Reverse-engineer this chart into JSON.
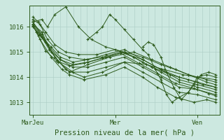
{
  "xlabel": "Pression niveau de la mer( hPa )",
  "xtick_labels": [
    "MarJeu",
    "Mer",
    "Ven"
  ],
  "xtick_positions": [
    0.0,
    0.45,
    0.9
  ],
  "ytick_labels": [
    "1013",
    "1014",
    "1015",
    "1016"
  ],
  "ytick_values": [
    1013,
    1014,
    1015,
    1016
  ],
  "ylim": [
    1012.5,
    1016.85
  ],
  "xlim": [
    -0.02,
    1.02
  ],
  "bg_color": "#cce8e0",
  "line_color": "#2d5a1b",
  "marker": "+",
  "grid_color": "#aaccc4",
  "n_vgrid": 28,
  "series": [
    {
      "x": [
        0.0,
        0.05,
        0.08,
        0.12,
        0.18,
        0.25,
        0.32,
        0.4,
        0.5,
        0.6,
        0.7,
        0.78,
        0.85,
        0.9,
        0.95,
        1.0
      ],
      "y": [
        1016.2,
        1016.3,
        1016.0,
        1016.5,
        1016.8,
        1016.0,
        1015.5,
        1015.2,
        1015.0,
        1014.8,
        1014.5,
        1014.3,
        1014.1,
        1014.0,
        1013.9,
        1013.8
      ]
    },
    {
      "x": [
        0.0,
        0.05,
        0.1,
        0.18,
        0.28,
        0.38,
        0.5,
        0.62,
        0.72,
        0.82,
        0.9,
        1.0
      ],
      "y": [
        1016.1,
        1015.8,
        1015.0,
        1014.3,
        1014.0,
        1014.2,
        1014.6,
        1014.5,
        1014.3,
        1014.1,
        1014.0,
        1013.9
      ]
    },
    {
      "x": [
        0.0,
        0.05,
        0.12,
        0.2,
        0.3,
        0.42,
        0.55,
        0.65,
        0.75,
        0.85,
        0.95,
        1.0
      ],
      "y": [
        1016.2,
        1015.7,
        1014.8,
        1014.2,
        1014.5,
        1014.8,
        1015.0,
        1014.7,
        1014.4,
        1014.1,
        1013.8,
        1013.7
      ]
    },
    {
      "x": [
        0.0,
        0.04,
        0.08,
        0.14,
        0.2,
        0.28,
        0.38,
        0.48,
        0.6,
        0.7,
        0.8,
        0.9,
        1.0
      ],
      "y": [
        1016.3,
        1016.1,
        1015.5,
        1015.0,
        1014.8,
        1014.7,
        1014.8,
        1015.0,
        1014.7,
        1014.3,
        1014.0,
        1013.8,
        1013.6
      ]
    },
    {
      "x": [
        0.0,
        0.03,
        0.07,
        0.12,
        0.18,
        0.25,
        0.35,
        0.45,
        0.55,
        0.65,
        0.75,
        0.85,
        0.93,
        1.0
      ],
      "y": [
        1016.4,
        1016.2,
        1015.8,
        1015.3,
        1015.0,
        1014.9,
        1014.9,
        1015.1,
        1014.8,
        1014.4,
        1014.1,
        1013.9,
        1013.7,
        1013.6
      ]
    },
    {
      "x": [
        0.0,
        0.05,
        0.1,
        0.15,
        0.22,
        0.3,
        0.4,
        0.5,
        0.6,
        0.7,
        0.8,
        0.9,
        1.0
      ],
      "y": [
        1016.0,
        1015.6,
        1015.2,
        1014.8,
        1014.6,
        1014.7,
        1014.9,
        1015.1,
        1014.7,
        1014.3,
        1013.9,
        1013.7,
        1013.5
      ]
    },
    {
      "x": [
        0.0,
        0.04,
        0.09,
        0.15,
        0.22,
        0.3,
        0.4,
        0.5,
        0.6,
        0.7,
        0.8,
        0.9,
        1.0
      ],
      "y": [
        1016.1,
        1015.7,
        1015.1,
        1014.7,
        1014.5,
        1014.6,
        1014.8,
        1015.0,
        1014.6,
        1014.2,
        1013.8,
        1013.6,
        1013.4
      ]
    },
    {
      "x": [
        0.0,
        0.03,
        0.07,
        0.13,
        0.2,
        0.28,
        0.38,
        0.48,
        0.58,
        0.68,
        0.78,
        0.88,
        0.96,
        1.0
      ],
      "y": [
        1016.05,
        1015.65,
        1015.05,
        1014.65,
        1014.45,
        1014.55,
        1014.75,
        1014.95,
        1014.55,
        1014.15,
        1013.75,
        1013.55,
        1013.35,
        1013.25
      ]
    },
    {
      "x": [
        0.02,
        0.08,
        0.15,
        0.22,
        0.3,
        0.4,
        0.5,
        0.6,
        0.7,
        0.8,
        0.9,
        1.0
      ],
      "y": [
        1015.8,
        1015.3,
        1014.7,
        1014.4,
        1014.4,
        1014.6,
        1014.8,
        1014.4,
        1014.0,
        1013.6,
        1013.5,
        1013.3
      ]
    },
    {
      "x": [
        0.0,
        0.07,
        0.14,
        0.22,
        0.3,
        0.4,
        0.5,
        0.6,
        0.7,
        0.8,
        0.9,
        1.0
      ],
      "y": [
        1016.2,
        1015.4,
        1014.6,
        1014.2,
        1014.2,
        1014.4,
        1014.6,
        1014.2,
        1013.8,
        1013.4,
        1013.3,
        1013.1
      ]
    },
    {
      "x": [
        0.0,
        0.04,
        0.1,
        0.16,
        0.2,
        0.28,
        0.4,
        0.5,
        0.6,
        0.68,
        0.78,
        0.88,
        0.95,
        1.0
      ],
      "y": [
        1016.1,
        1015.5,
        1014.8,
        1014.3,
        1014.1,
        1013.9,
        1014.1,
        1014.4,
        1014.0,
        1013.6,
        1013.2,
        1013.0,
        1013.1,
        1013.0
      ]
    },
    {
      "x": [
        0.3,
        0.35,
        0.38,
        0.42,
        0.45,
        0.5,
        0.55,
        0.6,
        0.63,
        0.67,
        0.7,
        0.73,
        0.76,
        0.8,
        0.85,
        0.9,
        0.95,
        1.0
      ],
      "y": [
        1015.5,
        1015.8,
        1016.0,
        1016.5,
        1016.3,
        1015.9,
        1015.5,
        1015.1,
        1014.9,
        1014.3,
        1013.9,
        1013.3,
        1013.0,
        1013.2,
        1013.4,
        1014.0,
        1014.1,
        1014.0
      ]
    },
    {
      "x": [
        0.6,
        0.63,
        0.66,
        0.7,
        0.73,
        0.77,
        0.81,
        0.85,
        0.88,
        0.92,
        0.96,
        1.0
      ],
      "y": [
        1015.2,
        1015.4,
        1015.3,
        1014.8,
        1014.2,
        1013.6,
        1013.1,
        1013.4,
        1013.7,
        1014.1,
        1014.2,
        1014.1
      ]
    }
  ]
}
